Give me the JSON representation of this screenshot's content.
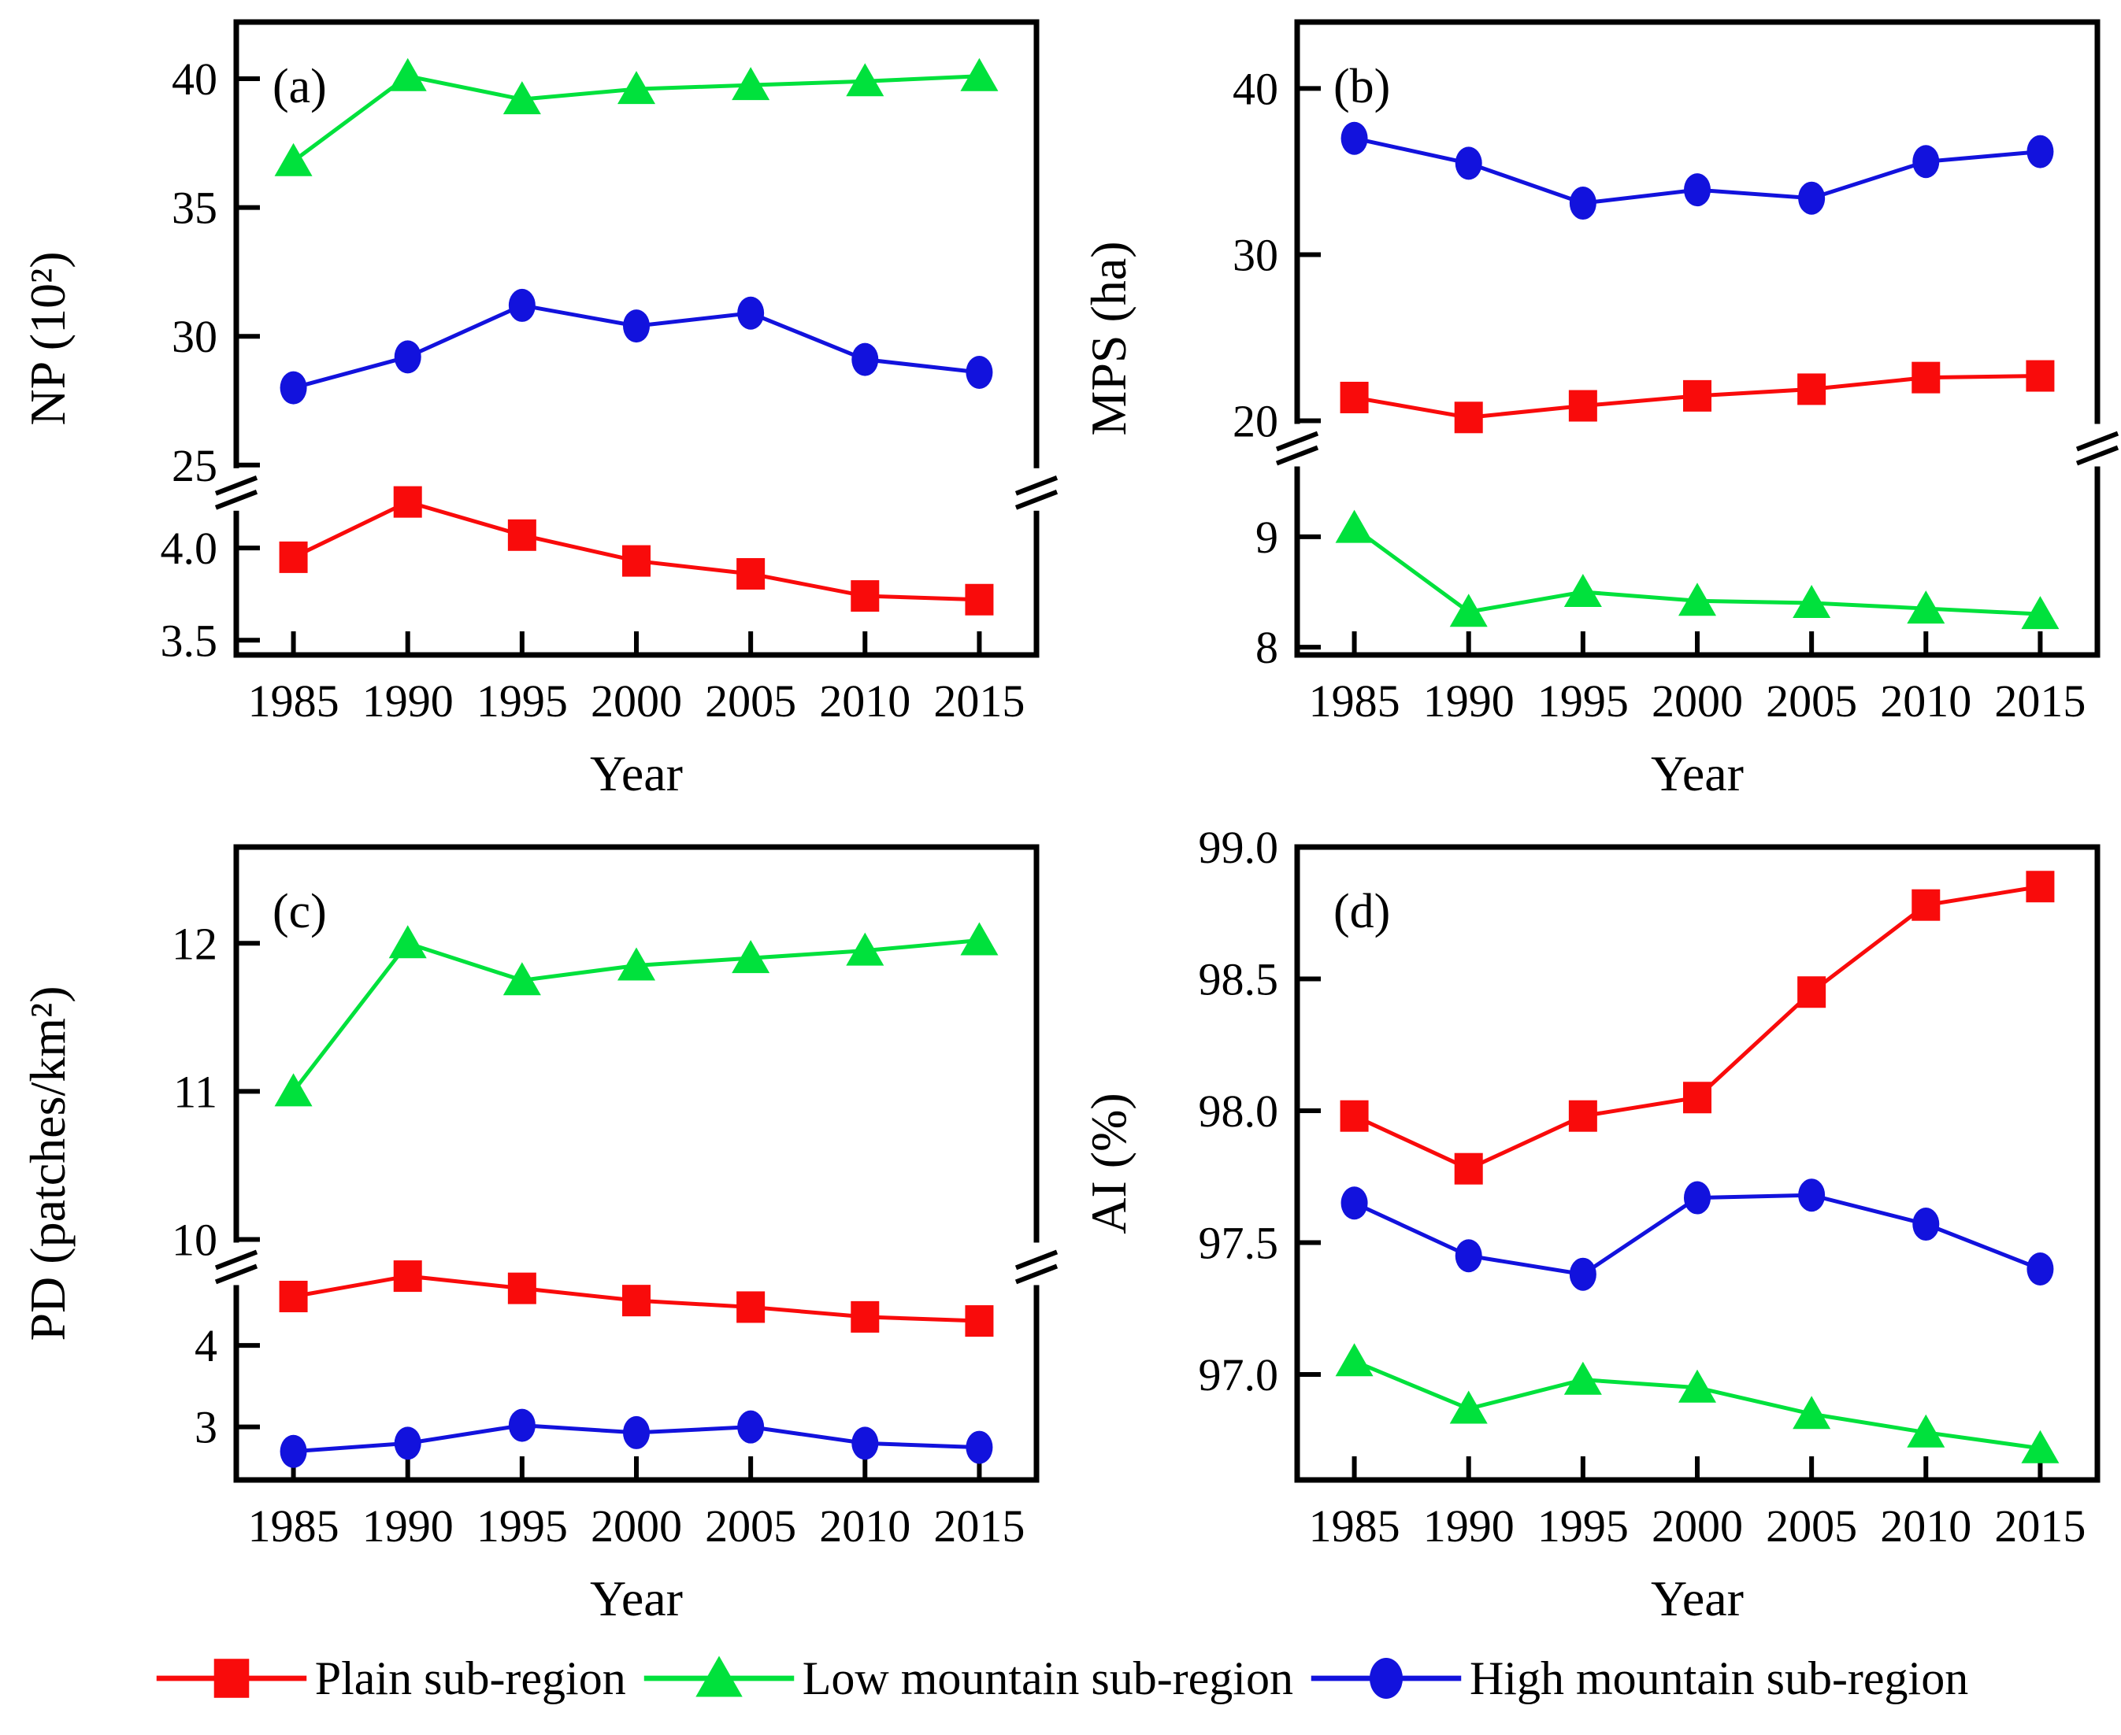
{
  "figure": {
    "background": "#ffffff",
    "frame_color": "#000000",
    "xlabel": "Year",
    "years": [
      1985,
      1990,
      1995,
      2000,
      2005,
      2010,
      2015
    ]
  },
  "legend": {
    "position": "bottom",
    "items": [
      {
        "label": "Plain sub-region",
        "marker": "square",
        "color": "#f90b0b"
      },
      {
        "label": "Low mountain sub-region",
        "marker": "triangle",
        "color": "#00e13c"
      },
      {
        "label": "High mountain sub-region",
        "marker": "circle",
        "color": "#1212dd"
      }
    ]
  },
  "chart_data": [
    {
      "type": "line",
      "panel": "(a)",
      "ylabel": "NP (10²)",
      "xlabel": "Year",
      "x": [
        1985,
        1990,
        1995,
        2000,
        2005,
        2010,
        2015
      ],
      "axis_break": true,
      "grid": false,
      "segments": [
        {
          "top": 42.2,
          "bottom": 25.0,
          "frac": 0.7,
          "ticks": [
            {
              "v": 40,
              "t": "40"
            },
            {
              "v": 35,
              "t": "35"
            },
            {
              "v": 30,
              "t": "30"
            },
            {
              "v": 25,
              "t": "25"
            }
          ]
        },
        {
          "top": 4.45,
          "bottom": 3.42,
          "frac": 0.3,
          "ticks": [
            {
              "v": 4.0,
              "t": "4.0"
            },
            {
              "v": 3.5,
              "t": "3.5"
            }
          ]
        }
      ],
      "series": [
        {
          "name": "Plain sub-region",
          "marker": "square",
          "color": "#f90b0b",
          "values": [
            3.95,
            4.25,
            4.07,
            3.93,
            3.86,
            3.74,
            3.72
          ]
        },
        {
          "name": "Low mountain sub-region",
          "marker": "triangle",
          "color": "#00e13c",
          "values": [
            36.8,
            40.1,
            39.2,
            39.6,
            39.75,
            39.9,
            40.1
          ]
        },
        {
          "name": "High mountain sub-region",
          "marker": "circle",
          "color": "#1212dd",
          "values": [
            28.0,
            29.2,
            31.2,
            30.4,
            30.9,
            29.1,
            28.6
          ]
        }
      ]
    },
    {
      "type": "line",
      "panel": "(b)",
      "ylabel": "MPS (ha)",
      "xlabel": "Year",
      "x": [
        1985,
        1990,
        1995,
        2000,
        2005,
        2010,
        2015
      ],
      "axis_break": true,
      "grid": false,
      "segments": [
        {
          "top": 44.0,
          "bottom": 20.0,
          "frac": 0.63,
          "ticks": [
            {
              "v": 40,
              "t": "40"
            },
            {
              "v": 30,
              "t": "30"
            },
            {
              "v": 20,
              "t": "20"
            }
          ]
        },
        {
          "top": 10.05,
          "bottom": 7.93,
          "frac": 0.37,
          "ticks": [
            {
              "v": 9,
              "t": "9"
            },
            {
              "v": 8,
              "t": "8"
            }
          ]
        }
      ],
      "series": [
        {
          "name": "Plain sub-region",
          "marker": "square",
          "color": "#f90b0b",
          "values": [
            21.4,
            20.2,
            20.9,
            21.5,
            21.9,
            22.6,
            22.7
          ]
        },
        {
          "name": "Low mountain sub-region",
          "marker": "triangle",
          "color": "#00e13c",
          "values": [
            9.08,
            8.32,
            8.5,
            8.42,
            8.4,
            8.35,
            8.3
          ]
        },
        {
          "name": "High mountain sub-region",
          "marker": "circle",
          "color": "#1212dd",
          "values": [
            37.0,
            35.5,
            33.1,
            33.9,
            33.4,
            35.6,
            36.2
          ]
        }
      ]
    },
    {
      "type": "line",
      "panel": "(c)",
      "ylabel": "PD (patches/km²)",
      "xlabel": "Year",
      "x": [
        1985,
        1990,
        1995,
        2000,
        2005,
        2010,
        2015
      ],
      "axis_break": true,
      "grid": false,
      "segments": [
        {
          "top": 12.65,
          "bottom": 10.0,
          "frac": 0.62,
          "ticks": [
            {
              "v": 12,
              "t": "12"
            },
            {
              "v": 11,
              "t": "11"
            },
            {
              "v": 10,
              "t": "10"
            }
          ]
        },
        {
          "top": 5.3,
          "bottom": 2.35,
          "frac": 0.38,
          "ticks": [
            {
              "v": 4,
              "t": "4"
            },
            {
              "v": 3,
              "t": "3"
            }
          ]
        }
      ],
      "series": [
        {
          "name": "Plain sub-region",
          "marker": "square",
          "color": "#f90b0b",
          "values": [
            4.6,
            4.85,
            4.7,
            4.55,
            4.47,
            4.35,
            4.3
          ]
        },
        {
          "name": "Low mountain sub-region",
          "marker": "triangle",
          "color": "#00e13c",
          "values": [
            11.0,
            12.0,
            11.75,
            11.85,
            11.9,
            11.95,
            12.02
          ]
        },
        {
          "name": "High mountain sub-region",
          "marker": "circle",
          "color": "#1212dd",
          "values": [
            2.7,
            2.8,
            3.02,
            2.93,
            3.0,
            2.8,
            2.75
          ]
        }
      ]
    },
    {
      "type": "line",
      "panel": "(d)",
      "ylabel": "AI (%)",
      "xlabel": "Year",
      "x": [
        1985,
        1990,
        1995,
        2000,
        2005,
        2010,
        2015
      ],
      "axis_break": false,
      "grid": false,
      "segments": [
        {
          "top": 99.0,
          "bottom": 96.6,
          "frac": 1.0,
          "ticks": [
            {
              "v": 99.0,
              "t": "99.0"
            },
            {
              "v": 98.5,
              "t": "98.5"
            },
            {
              "v": 98.0,
              "t": "98.0"
            },
            {
              "v": 97.5,
              "t": "97.5"
            },
            {
              "v": 97.0,
              "t": "97.0"
            }
          ]
        }
      ],
      "series": [
        {
          "name": "Plain sub-region",
          "marker": "square",
          "color": "#f90b0b",
          "values": [
            97.98,
            97.78,
            97.98,
            98.05,
            98.45,
            98.78,
            98.85
          ]
        },
        {
          "name": "Low mountain sub-region",
          "marker": "triangle",
          "color": "#00e13c",
          "values": [
            97.05,
            96.87,
            96.98,
            96.95,
            96.85,
            96.78,
            96.72
          ]
        },
        {
          "name": "High mountain sub-region",
          "marker": "circle",
          "color": "#1212dd",
          "values": [
            97.65,
            97.45,
            97.38,
            97.67,
            97.68,
            97.57,
            97.4
          ]
        }
      ]
    }
  ]
}
